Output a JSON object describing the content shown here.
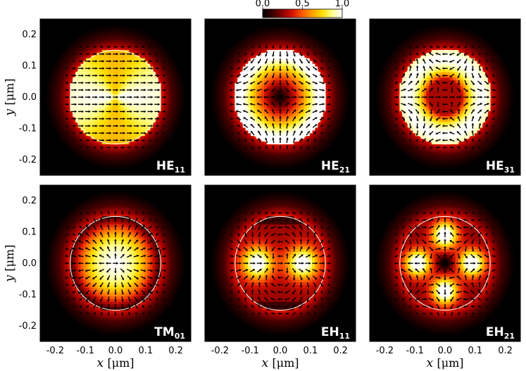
{
  "chart_data": {
    "type": "heatmap",
    "colormap": [
      "#000000",
      "#3c0000",
      "#8a0000",
      "#d41400",
      "#ff5a00",
      "#ffa000",
      "#ffe000",
      "#ffff90",
      "#ffffff"
    ],
    "colorbar": {
      "ticks": [
        "0.0",
        "0.5",
        "1.0"
      ],
      "range": [
        0,
        1
      ],
      "placement": "top-center"
    },
    "xlabel_var": "x",
    "xlabel_unit": "[μm]",
    "ylabel_var": "y",
    "ylabel_unit": "[μm]",
    "xlim": [
      -0.25,
      0.25
    ],
    "ylim": [
      -0.25,
      0.25
    ],
    "xticks": [
      "-0.2",
      "-0.1",
      "0.0",
      "0.1",
      "0.2"
    ],
    "yticks": [
      "0.2",
      "0.1",
      "0.0",
      "-0.1",
      "-0.2"
    ],
    "core_radius": 0.15,
    "core_outline_color": "#ffffff",
    "arrow_color": "#000000",
    "panels": [
      {
        "mode": "HE",
        "sub": "11",
        "pattern": "he11"
      },
      {
        "mode": "HE",
        "sub": "21",
        "pattern": "he21"
      },
      {
        "mode": "HE",
        "sub": "31",
        "pattern": "he31"
      },
      {
        "mode": "TM",
        "sub": "01",
        "pattern": "tm01"
      },
      {
        "mode": "EH",
        "sub": "11",
        "pattern": "eh11"
      },
      {
        "mode": "EH",
        "sub": "21",
        "pattern": "eh21"
      }
    ]
  }
}
